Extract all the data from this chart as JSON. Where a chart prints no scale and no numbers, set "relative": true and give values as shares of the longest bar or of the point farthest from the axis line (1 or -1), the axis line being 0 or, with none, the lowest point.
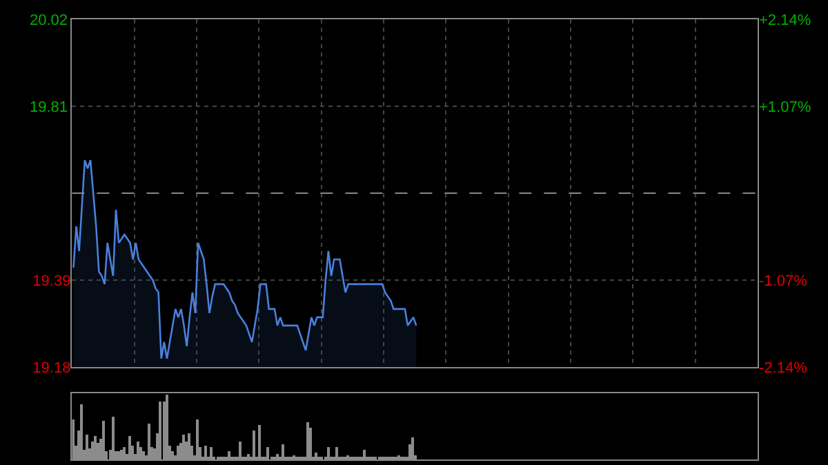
{
  "chart_data": [
    {
      "type": "area",
      "categories": [
        null,
        null,
        null,
        null,
        null,
        null,
        null,
        null,
        null,
        null,
        null,
        null,
        null,
        null,
        null,
        null,
        null,
        null,
        null,
        null,
        null,
        null,
        null,
        null,
        null,
        null,
        null,
        null,
        null,
        null,
        null,
        null,
        null,
        null,
        null,
        null,
        null,
        null,
        null,
        null,
        null,
        null,
        null,
        null,
        null,
        null,
        null,
        null,
        null,
        null,
        null,
        null,
        null,
        null,
        null,
        null,
        null,
        null,
        null,
        null,
        null,
        null,
        null,
        null,
        null,
        null,
        null,
        null,
        null,
        null,
        null,
        null,
        null,
        null,
        null,
        null,
        null,
        null,
        null,
        null,
        null,
        null,
        null,
        null,
        null,
        null,
        null,
        null,
        null,
        null,
        null,
        null,
        null,
        null,
        null,
        null,
        null,
        null,
        null,
        null,
        null,
        null,
        null,
        null,
        null,
        null,
        null,
        null,
        null,
        null,
        null,
        null,
        null,
        null,
        null,
        null,
        null,
        null,
        null,
        null,
        null,
        null,
        null,
        null,
        null,
        null,
        null,
        null,
        null,
        null,
        null,
        null,
        null,
        null,
        null,
        null,
        null,
        null,
        null,
        null,
        null,
        null,
        null,
        null,
        null,
        null,
        null,
        null,
        null,
        null,
        null,
        null,
        null,
        null,
        null,
        null,
        null,
        null,
        null,
        null,
        null,
        null,
        null,
        null,
        null,
        null,
        null,
        null,
        null,
        null,
        null,
        null,
        null,
        null,
        null,
        null,
        null,
        null,
        null,
        null,
        null,
        null,
        null,
        null,
        null,
        null,
        null,
        null,
        null,
        null,
        null,
        null,
        null,
        null,
        null,
        null,
        null,
        null,
        null,
        null,
        null,
        null,
        null,
        null,
        null,
        null,
        null,
        null,
        null,
        null,
        null,
        null,
        null,
        null,
        null,
        null,
        null,
        null,
        null,
        null,
        null,
        null,
        null,
        null,
        null,
        null,
        null,
        null,
        null,
        null,
        null,
        null,
        null,
        null,
        null,
        null,
        null,
        null,
        null,
        null,
        null,
        null
      ],
      "series": [
        {
          "color": "#4a80dc",
          "values": [
            19.42,
            19.52,
            19.46,
            19.57,
            19.68,
            19.66,
            19.68,
            19.6,
            19.52,
            19.41,
            19.4,
            19.38,
            19.48,
            19.44,
            19.4,
            19.56,
            19.48,
            19.49,
            19.5,
            19.49,
            19.48,
            19.44,
            19.48,
            19.44,
            19.43,
            19.42,
            19.41,
            19.4,
            19.39,
            19.37,
            19.36,
            19.2,
            19.24,
            19.2,
            19.24,
            19.28,
            19.32,
            19.3,
            19.32,
            19.28,
            19.23,
            19.3,
            19.36,
            19.31,
            19.48,
            19.46,
            19.44,
            19.38,
            19.31,
            19.35,
            19.38,
            19.38,
            19.38,
            19.38,
            19.37,
            19.36,
            19.34,
            19.33,
            19.31,
            19.3,
            19.29,
            19.28,
            19.26,
            19.24,
            19.28,
            19.32,
            19.38,
            19.38,
            19.38,
            19.32,
            19.32,
            19.32,
            19.28,
            19.3,
            19.28,
            19.28,
            19.28,
            19.28,
            19.28,
            19.28,
            19.26,
            19.24,
            19.22,
            19.26,
            19.3,
            19.28,
            19.3,
            19.3,
            19.3,
            19.39,
            19.46,
            19.4,
            19.44,
            19.44,
            19.44,
            19.4,
            19.36,
            19.38,
            19.38,
            19.38,
            19.38,
            19.38,
            19.38,
            19.38,
            19.38,
            19.38,
            19.38,
            19.38,
            19.38,
            19.38,
            19.36,
            19.35,
            19.34,
            19.32,
            19.32,
            19.32,
            19.32,
            19.32,
            19.28,
            19.29,
            19.3,
            19.28,
            null,
            null,
            null,
            null,
            null,
            null,
            null,
            null,
            null,
            null,
            null,
            null,
            null,
            null,
            null,
            null,
            null,
            null,
            null,
            null,
            null,
            null,
            null,
            null,
            null,
            null,
            null,
            null,
            null,
            null,
            null,
            null,
            null,
            null,
            null,
            null,
            null,
            null,
            null,
            null,
            null,
            null,
            null,
            null,
            null,
            null,
            null,
            null,
            null,
            null,
            null,
            null,
            null,
            null,
            null,
            null,
            null,
            null,
            null,
            null,
            null,
            null,
            null,
            null,
            null,
            null,
            null,
            null,
            null,
            null,
            null,
            null,
            null,
            null,
            null,
            null,
            null,
            null,
            null,
            null,
            null,
            null,
            null,
            null,
            null,
            null,
            null,
            null,
            null,
            null,
            null,
            null,
            null,
            null,
            null,
            null,
            null,
            null,
            null,
            null,
            null,
            null,
            null,
            null,
            null,
            null,
            null,
            null,
            null,
            null,
            null,
            null,
            null,
            null,
            null,
            null,
            null,
            null,
            null,
            null
          ]
        }
      ],
      "ylim": [
        19.18,
        20.02
      ],
      "yticks": [
        19.18,
        19.39,
        19.81,
        20.02
      ],
      "y2lim": [
        -2.14,
        2.14
      ],
      "y2ticks": [
        {
          "value": -2.14,
          "label": "-2.14%"
        },
        {
          "value": -1.07,
          "label": "-1.07%"
        },
        {
          "value": 1.07,
          "label": "+1.07%"
        },
        {
          "value": 2.14,
          "label": "+2.14%"
        }
      ],
      "ref_lines": [
        {
          "axis": "y",
          "value": 19.6,
          "color": "#888888",
          "line_style": "dashed"
        }
      ],
      "grid": true,
      "tick_labels": "y"
    },
    {
      "type": "bar",
      "relative": true,
      "color": "#8c8c8c",
      "tick_labels": false,
      "categories": [
        null,
        null,
        null,
        null,
        null,
        null,
        null,
        null,
        null,
        null,
        null,
        null,
        null,
        null,
        null,
        null,
        null,
        null,
        null,
        null,
        null,
        null,
        null,
        null,
        null,
        null,
        null,
        null,
        null,
        null,
        null,
        null,
        null,
        null,
        null,
        null,
        null,
        null,
        null,
        null,
        null,
        null,
        null,
        null,
        null,
        null,
        null,
        null,
        null,
        null,
        null,
        null,
        null,
        null,
        null,
        null,
        null,
        null,
        null,
        null,
        null,
        null,
        null,
        null,
        null,
        null,
        null,
        null,
        null,
        null,
        null,
        null,
        null,
        null,
        null,
        null,
        null,
        null,
        null,
        null,
        null,
        null,
        null,
        null,
        null,
        null,
        null,
        null,
        null,
        null,
        null,
        null,
        null,
        null,
        null,
        null,
        null,
        null,
        null,
        null,
        null,
        null,
        null,
        null,
        null,
        null,
        null,
        null,
        null,
        null,
        null,
        null,
        null,
        null,
        null,
        null,
        null,
        null,
        null,
        null,
        null,
        null,
        null,
        null,
        null,
        null,
        null,
        null,
        null,
        null,
        null,
        null,
        null,
        null,
        null,
        null,
        null,
        null,
        null,
        null,
        null,
        null,
        null,
        null,
        null,
        null,
        null,
        null,
        null,
        null,
        null,
        null,
        null,
        null,
        null,
        null,
        null,
        null,
        null,
        null,
        null,
        null,
        null,
        null,
        null,
        null,
        null,
        null,
        null,
        null,
        null,
        null,
        null,
        null,
        null,
        null,
        null,
        null,
        null,
        null,
        null,
        null,
        null,
        null,
        null,
        null,
        null,
        null,
        null,
        null,
        null,
        null,
        null,
        null,
        null,
        null,
        null,
        null,
        null,
        null,
        null,
        null,
        null,
        null,
        null,
        null,
        null,
        null,
        null,
        null,
        null,
        null,
        null,
        null,
        null,
        null,
        null,
        null,
        null,
        null,
        null,
        null,
        null,
        null,
        null,
        null,
        null,
        null,
        null,
        null,
        null,
        null,
        null,
        null,
        null,
        null,
        null,
        null,
        null,
        null,
        null,
        null
      ],
      "values": [
        0.61,
        0.2,
        0.45,
        0.86,
        0.14,
        0.39,
        0.16,
        0.27,
        0.36,
        0.26,
        0.32,
        0.59,
        0.12,
        0.14,
        0.65,
        0.12,
        0.12,
        0.14,
        0.18,
        0.09,
        0.36,
        0.2,
        0.09,
        0.27,
        0.19,
        0.12,
        0.07,
        0.56,
        0.19,
        0.16,
        0.41,
        0.9,
        0.9,
        1,
        0.22,
        0.12,
        0.07,
        0.22,
        0.26,
        0.39,
        0.27,
        0.41,
        0.22,
        0.07,
        0.61,
        0.18,
        0.05,
        0.22,
        0.05,
        0.18,
        0.05,
        0.04,
        0.05,
        0.05,
        0.05,
        0.12,
        0.05,
        0.05,
        0.05,
        0.27,
        0.05,
        0.05,
        0.08,
        0.05,
        0.45,
        0.05,
        0.54,
        0.05,
        0.05,
        0.19,
        0.05,
        0.05,
        0.08,
        0.05,
        0.24,
        0.05,
        0.05,
        0.05,
        0.06,
        0.05,
        0.05,
        0.05,
        0.05,
        0.58,
        0.49,
        0.05,
        0.1,
        0.05,
        0.05,
        0.05,
        0.18,
        0.05,
        0.05,
        0.19,
        0.05,
        0.05,
        0.05,
        0.06,
        0.05,
        0.05,
        0.05,
        0.05,
        0.05,
        0.14,
        0.05,
        0.05,
        0.05,
        0.05,
        0.05,
        0.05,
        0.04,
        0.05,
        0.05,
        0.05,
        0.05,
        0.06,
        0.05,
        0.05,
        0.05,
        0.24,
        0.34,
        0.06,
        null,
        null,
        null,
        null,
        null,
        null,
        null,
        null,
        null,
        null,
        null,
        null,
        null,
        null,
        null,
        null,
        null,
        null,
        null,
        null,
        null,
        null,
        null,
        null,
        null,
        null,
        null,
        null,
        null,
        null,
        null,
        null,
        null,
        null,
        null,
        null,
        null,
        null,
        null,
        null,
        null,
        null,
        null,
        null,
        null,
        null,
        null,
        null,
        null,
        null,
        null,
        null,
        null,
        null,
        null,
        null,
        null,
        null,
        null,
        null,
        null,
        null,
        null,
        null,
        null,
        null,
        null,
        null,
        null,
        null,
        null,
        null,
        null,
        null,
        null,
        null,
        null,
        null,
        null,
        null,
        null,
        null,
        null,
        null,
        null,
        null,
        null,
        null,
        null,
        null,
        null,
        null,
        null,
        null,
        null,
        null,
        null,
        null,
        null,
        null,
        null,
        null,
        null,
        null,
        null,
        null,
        null,
        null,
        null,
        null,
        null,
        null,
        null,
        null,
        null,
        null,
        null,
        null,
        null,
        null
      ]
    }
  ]
}
